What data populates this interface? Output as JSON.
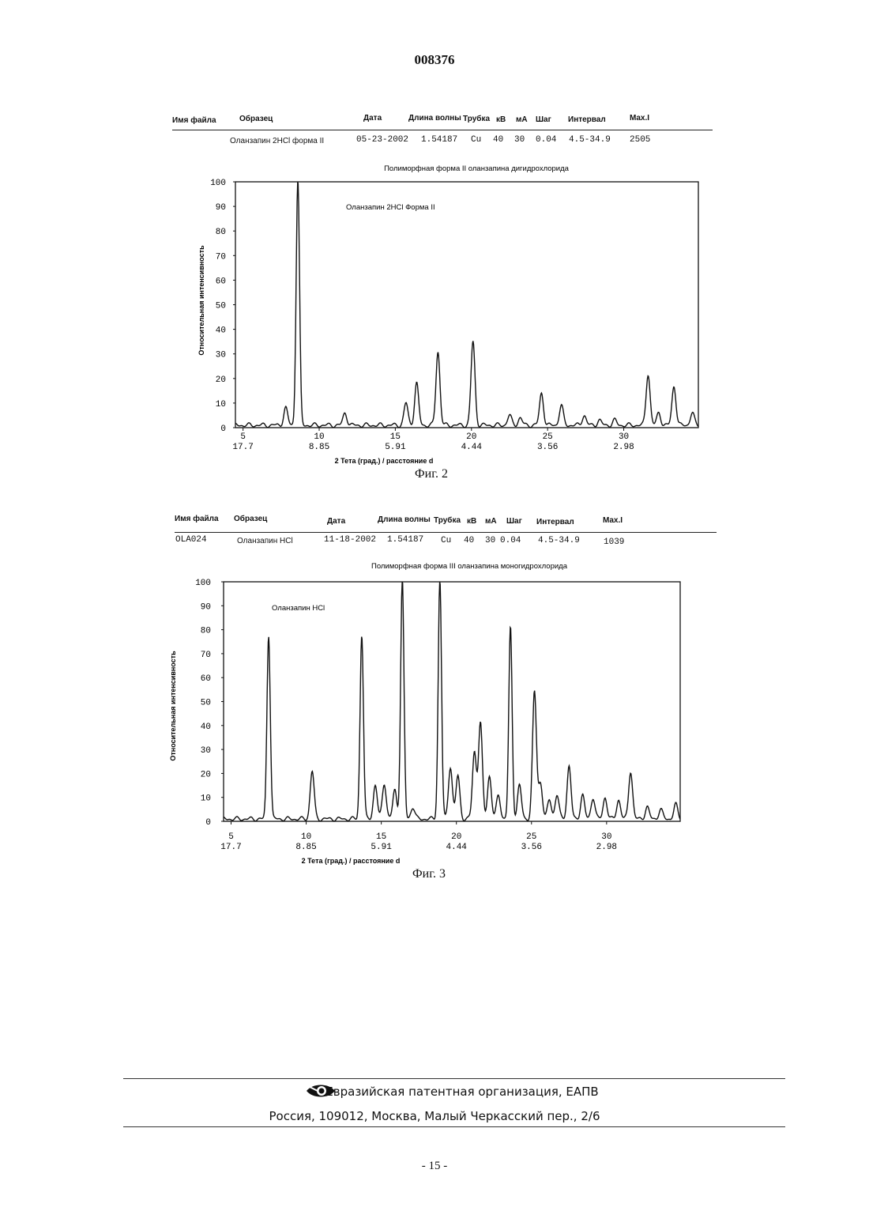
{
  "document_number": "008376",
  "figures": [
    {
      "header": {
        "labels": [
          "Имя файла",
          "Образец",
          "Дата",
          "Длина волны",
          "Трубка",
          "кВ",
          "мА",
          "Шаг",
          "Интервал",
          "Max.I"
        ],
        "values": [
          "",
          "Оланзапин 2HCl форма II",
          "05-23-2002",
          "1.54187",
          "Cu",
          "40",
          "30",
          "0.04",
          "4.5-34.9",
          "2505"
        ]
      },
      "caption": "Фиг. 2"
    },
    {
      "header": {
        "labels": [
          "Имя файла",
          "Образец",
          "Дата",
          "Длина волны",
          "Трубка",
          "кВ",
          "мА",
          "Шаг",
          "Интервал",
          "Max.I"
        ],
        "values": [
          "OLA024",
          "Оланзапин HCl",
          "11-18-2002",
          "1.54187",
          "Cu",
          "40",
          "30",
          "0.04",
          "4.5-34.9",
          "1039"
        ]
      },
      "caption": "Фиг. 3"
    }
  ],
  "chart_data": [
    {
      "type": "line",
      "title": "Полиморфная форма II оланзапина дигидрохлорида",
      "annotation": "Оланзапин 2HCl Форма II",
      "xlabel": "2 Тета (град.) / расстояние d",
      "ylabel": "Относительная интенсивность",
      "xlim": [
        4.5,
        34.9
      ],
      "ylim": [
        0,
        100
      ],
      "x_ticks": [
        5,
        10,
        15,
        20,
        25,
        30
      ],
      "x_tick_d_labels": [
        "17.7",
        "8.85",
        "5.91",
        "4.44",
        "3.56",
        "2.98"
      ],
      "y_ticks": [
        0,
        10,
        20,
        30,
        40,
        50,
        60,
        70,
        80,
        90,
        100
      ],
      "grid": false,
      "series": [
        {
          "peaks": [
            [
              7.8,
              7
            ],
            [
              8.6,
              100
            ],
            [
              11.7,
              5
            ],
            [
              15.7,
              9
            ],
            [
              16.4,
              17
            ],
            [
              17.8,
              30
            ],
            [
              20.1,
              34
            ],
            [
              22.5,
              4
            ],
            [
              23.2,
              3
            ],
            [
              24.6,
              13
            ],
            [
              25.9,
              8
            ],
            [
              27.4,
              4
            ],
            [
              28.4,
              2
            ],
            [
              29.4,
              2
            ],
            [
              31.6,
              21
            ],
            [
              32.3,
              5
            ],
            [
              33.3,
              16
            ],
            [
              34.5,
              5
            ]
          ]
        }
      ]
    },
    {
      "type": "line",
      "title": "Полиморфная форма III оланзапина моногидрохлорида",
      "annotation": "Оланзапин HCl",
      "xlabel": "2 Тета (град.) / расстояние d",
      "ylabel": "Относительная интенсивность",
      "xlim": [
        4.5,
        34.9
      ],
      "ylim": [
        0,
        100
      ],
      "x_ticks": [
        5,
        10,
        15,
        20,
        25,
        30
      ],
      "x_tick_d_labels": [
        "17.7",
        "8.85",
        "5.91",
        "4.44",
        "3.56",
        "2.98"
      ],
      "y_ticks": [
        0,
        10,
        20,
        30,
        40,
        50,
        60,
        70,
        80,
        90,
        100
      ],
      "grid": false,
      "series": [
        {
          "peaks": [
            [
              7.5,
              77
            ],
            [
              10.4,
              20
            ],
            [
              13.7,
              77
            ],
            [
              14.6,
              14
            ],
            [
              15.2,
              15
            ],
            [
              15.9,
              12
            ],
            [
              16.4,
              100
            ],
            [
              17.1,
              5
            ],
            [
              18.9,
              100
            ],
            [
              19.6,
              22
            ],
            [
              20.1,
              18
            ],
            [
              21.2,
              28
            ],
            [
              21.6,
              40
            ],
            [
              22.2,
              18
            ],
            [
              22.8,
              10
            ],
            [
              23.6,
              80
            ],
            [
              24.2,
              14
            ],
            [
              25.2,
              53
            ],
            [
              25.6,
              15
            ],
            [
              26.2,
              8
            ],
            [
              26.7,
              10
            ],
            [
              27.5,
              22
            ],
            [
              28.4,
              10
            ],
            [
              29.1,
              9
            ],
            [
              29.9,
              9
            ],
            [
              30.8,
              8
            ],
            [
              31.6,
              20
            ],
            [
              32.7,
              5
            ],
            [
              33.6,
              4
            ],
            [
              34.6,
              6
            ]
          ]
        }
      ]
    }
  ],
  "footer": {
    "org": "Евразийская патентная организация, ЕАПВ",
    "address": "Россия, 109012, Москва, Малый Черкасский пер., 2/6",
    "page": "- 15 -"
  }
}
